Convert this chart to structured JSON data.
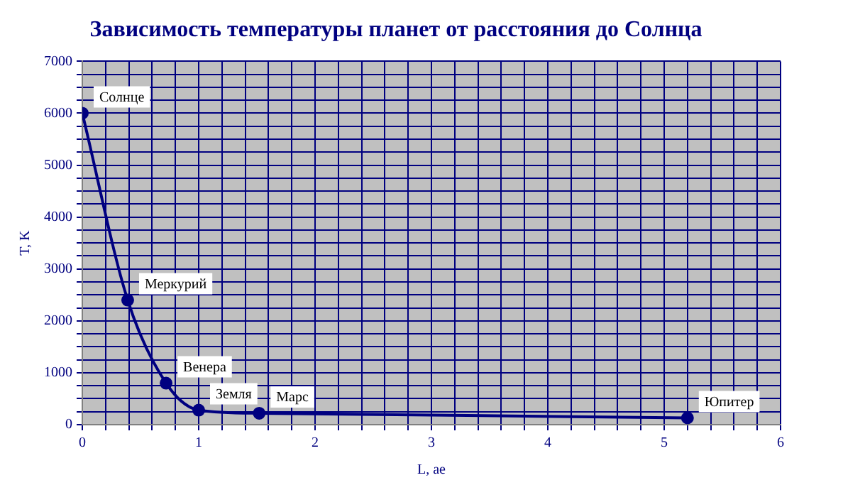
{
  "chart_data": {
    "type": "line",
    "title": "Зависимость температуры планет от расстояния до Солнца",
    "xlabel": "L, ае",
    "ylabel": "T, K",
    "series": [
      {
        "color": "#000080",
        "x": [
          0,
          0.39,
          0.72,
          1,
          1.52,
          5.2
        ],
        "values": [
          6000,
          2400,
          800,
          280,
          220,
          130
        ]
      }
    ],
    "annotations": [
      {
        "text": "Солнце",
        "x": 0,
        "y": 6000
      },
      {
        "text": "Меркурий",
        "x": 0.39,
        "y": 2400
      },
      {
        "text": "Венера",
        "x": 0.72,
        "y": 800
      },
      {
        "text": "Земля",
        "x": 1,
        "y": 280
      },
      {
        "text": "Марс",
        "x": 1.52,
        "y": 220
      },
      {
        "text": "Юпитер",
        "x": 5.2,
        "y": 130
      }
    ],
    "xlim": [
      0,
      6
    ],
    "xticks": [
      0,
      {
        "value": 0.2,
        "label": null
      },
      {
        "value": 0.4,
        "label": null
      },
      {
        "value": 0.6,
        "label": null
      },
      {
        "value": 0.8,
        "label": null
      },
      1,
      {
        "value": 1.2,
        "label": null
      },
      {
        "value": 1.4,
        "label": null
      },
      {
        "value": 1.6,
        "label": null
      },
      {
        "value": 1.8,
        "label": null
      },
      2,
      {
        "value": 2.2,
        "label": null
      },
      {
        "value": 2.4,
        "label": null
      },
      {
        "value": 2.6,
        "label": null
      },
      {
        "value": 2.8,
        "label": null
      },
      3,
      {
        "value": 3.2,
        "label": null
      },
      {
        "value": 3.4,
        "label": null
      },
      {
        "value": 3.6,
        "label": null
      },
      {
        "value": 3.8,
        "label": null
      },
      4,
      {
        "value": 4.2,
        "label": null
      },
      {
        "value": 4.4,
        "label": null
      },
      {
        "value": 4.6,
        "label": null
      },
      {
        "value": 4.8,
        "label": null
      },
      5,
      {
        "value": 5.2,
        "label": null
      },
      {
        "value": 5.4,
        "label": null
      },
      {
        "value": 5.6,
        "label": null
      },
      {
        "value": 5.8,
        "label": null
      },
      6
    ],
    "ylim": [
      0,
      7000
    ],
    "yticks": [
      0,
      {
        "value": 250,
        "label": null
      },
      {
        "value": 500,
        "label": null
      },
      {
        "value": 750,
        "label": null
      },
      1000,
      {
        "value": 1250,
        "label": null
      },
      {
        "value": 1500,
        "label": null
      },
      {
        "value": 1750,
        "label": null
      },
      2000,
      {
        "value": 2250,
        "label": null
      },
      {
        "value": 2500,
        "label": null
      },
      {
        "value": 2750,
        "label": null
      },
      3000,
      {
        "value": 3250,
        "label": null
      },
      {
        "value": 3500,
        "label": null
      },
      {
        "value": 3750,
        "label": null
      },
      4000,
      {
        "value": 4250,
        "label": null
      },
      {
        "value": 4500,
        "label": null
      },
      {
        "value": 4750,
        "label": null
      },
      5000,
      {
        "value": 5250,
        "label": null
      },
      {
        "value": 5500,
        "label": null
      },
      {
        "value": 5750,
        "label": null
      },
      6000,
      {
        "value": 6250,
        "label": null
      },
      {
        "value": 6500,
        "label": null
      },
      {
        "value": 6750,
        "label": null
      },
      7000
    ],
    "grid": true,
    "legend": false,
    "marker": "circle",
    "line_style": "solid"
  }
}
